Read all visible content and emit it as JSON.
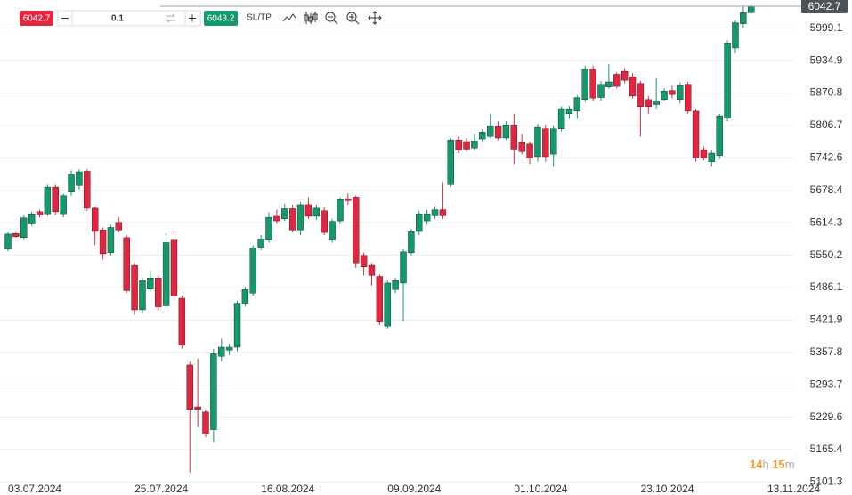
{
  "toolbar": {
    "sell": "6042.7",
    "quantity": "0.1",
    "buy": "6043.2",
    "sltp": "SL/TP"
  },
  "countdown": [
    {
      "num": "14",
      "unit": "h"
    },
    {
      "num": "15",
      "unit": "m"
    }
  ],
  "chart_data": {
    "type": "candlestick",
    "up_color": "#14996a",
    "down_color": "#e3263f",
    "last_price": 6042.7,
    "ylim": [
      5095,
      6055
    ],
    "yticks": [
      5101.3,
      5165.4,
      5229.6,
      5293.7,
      5357.8,
      5421.9,
      5486.1,
      5550.2,
      5614.3,
      5678.4,
      5742.6,
      5806.7,
      5870.8,
      5934.9,
      5999.1
    ],
    "xlim": [
      -0.5,
      101
    ],
    "xticks": [
      {
        "value": 3.5,
        "label": "03.07.2024"
      },
      {
        "value": 19.5,
        "label": "25.07.2024"
      },
      {
        "value": 35.5,
        "label": "16.08.2024"
      },
      {
        "value": 51.5,
        "label": "09.09.2024"
      },
      {
        "value": 67.5,
        "label": "01.10.2024"
      },
      {
        "value": 83.5,
        "label": "23.10.2024"
      },
      {
        "value": 99.5,
        "label": "13.11.2024"
      }
    ],
    "grid": true,
    "open": [
      5562,
      5593,
      5585,
      5612,
      5636,
      5632,
      5685,
      5632,
      5675,
      5688,
      5716,
      5643,
      5600,
      5555,
      5615,
      5585,
      5530,
      5442,
      5483,
      5505,
      5450,
      5580,
      5465,
      5333,
      5250,
      5240,
      5205,
      5350,
      5362,
      5368,
      5455,
      5475,
      5565,
      5580,
      5627,
      5622,
      5642,
      5600,
      5650,
      5627,
      5638,
      5580,
      5618,
      5662,
      5665,
      5550,
      5530,
      5508,
      5410,
      5482,
      5495,
      5555,
      5597,
      5618,
      5628,
      5640,
      5690,
      5778,
      5775,
      5762,
      5780,
      5785,
      5805,
      5782,
      5808,
      5773,
      5770,
      5745,
      5800,
      5750,
      5800,
      5830,
      5835,
      5858,
      5918,
      5862,
      5883,
      5908,
      5914,
      5903,
      5890,
      5858,
      5848,
      5858,
      5876,
      5858,
      5888,
      5835,
      5759,
      5735,
      5747,
      5821,
      5960,
      6008,
      6030
    ],
    "high": [
      5595,
      5596,
      5630,
      5636,
      5640,
      5690,
      5690,
      5672,
      5718,
      5720,
      5720,
      5647,
      5605,
      5610,
      5625,
      5590,
      5535,
      5505,
      5520,
      5510,
      5592,
      5598,
      5470,
      5340,
      5345,
      5245,
      5365,
      5385,
      5375,
      5460,
      5488,
      5570,
      5590,
      5635,
      5640,
      5652,
      5650,
      5655,
      5665,
      5650,
      5645,
      5622,
      5665,
      5672,
      5668,
      5555,
      5535,
      5512,
      5500,
      5505,
      5562,
      5602,
      5638,
      5640,
      5647,
      5695,
      5782,
      5785,
      5782,
      5790,
      5800,
      5830,
      5815,
      5815,
      5830,
      5790,
      5775,
      5810,
      5808,
      5806,
      5845,
      5845,
      5866,
      5925,
      5925,
      5895,
      5928,
      5912,
      5920,
      5910,
      5895,
      5865,
      5900,
      5880,
      5885,
      5892,
      5893,
      5840,
      5765,
      5758,
      5830,
      5975,
      6015,
      6042,
      6045
    ],
    "low": [
      5558,
      5585,
      5580,
      5608,
      5625,
      5628,
      5630,
      5625,
      5668,
      5680,
      5638,
      5570,
      5542,
      5550,
      5595,
      5475,
      5432,
      5435,
      5478,
      5440,
      5445,
      5462,
      5365,
      5120,
      5210,
      5190,
      5180,
      5340,
      5352,
      5360,
      5448,
      5470,
      5560,
      5575,
      5612,
      5618,
      5595,
      5590,
      5622,
      5620,
      5590,
      5575,
      5612,
      5650,
      5525,
      5510,
      5490,
      5412,
      5405,
      5475,
      5420,
      5550,
      5590,
      5610,
      5622,
      5622,
      5685,
      5752,
      5755,
      5758,
      5775,
      5782,
      5778,
      5778,
      5730,
      5750,
      5730,
      5735,
      5735,
      5725,
      5795,
      5820,
      5820,
      5853,
      5855,
      5855,
      5880,
      5880,
      5890,
      5860,
      5785,
      5830,
      5840,
      5855,
      5860,
      5850,
      5830,
      5735,
      5738,
      5725,
      5740,
      5815,
      5950,
      6000,
      6028
    ],
    "close": [
      5592,
      5587,
      5624,
      5632,
      5630,
      5685,
      5636,
      5668,
      5710,
      5715,
      5643,
      5597,
      5553,
      5605,
      5600,
      5480,
      5442,
      5500,
      5505,
      5448,
      5575,
      5470,
      5372,
      5245,
      5245,
      5197,
      5355,
      5368,
      5368,
      5455,
      5482,
      5565,
      5582,
      5625,
      5618,
      5642,
      5600,
      5650,
      5627,
      5643,
      5595,
      5617,
      5660,
      5658,
      5535,
      5527,
      5510,
      5418,
      5495,
      5500,
      5557,
      5597,
      5632,
      5632,
      5640,
      5628,
      5778,
      5758,
      5760,
      5776,
      5794,
      5806,
      5782,
      5808,
      5760,
      5755,
      5742,
      5803,
      5745,
      5800,
      5840,
      5840,
      5862,
      5918,
      5861,
      5888,
      5893,
      5884,
      5896,
      5865,
      5844,
      5844,
      5855,
      5875,
      5868,
      5886,
      5835,
      5742,
      5742,
      5752,
      5826,
      5970,
      6010,
      6030,
      6042.7
    ]
  }
}
